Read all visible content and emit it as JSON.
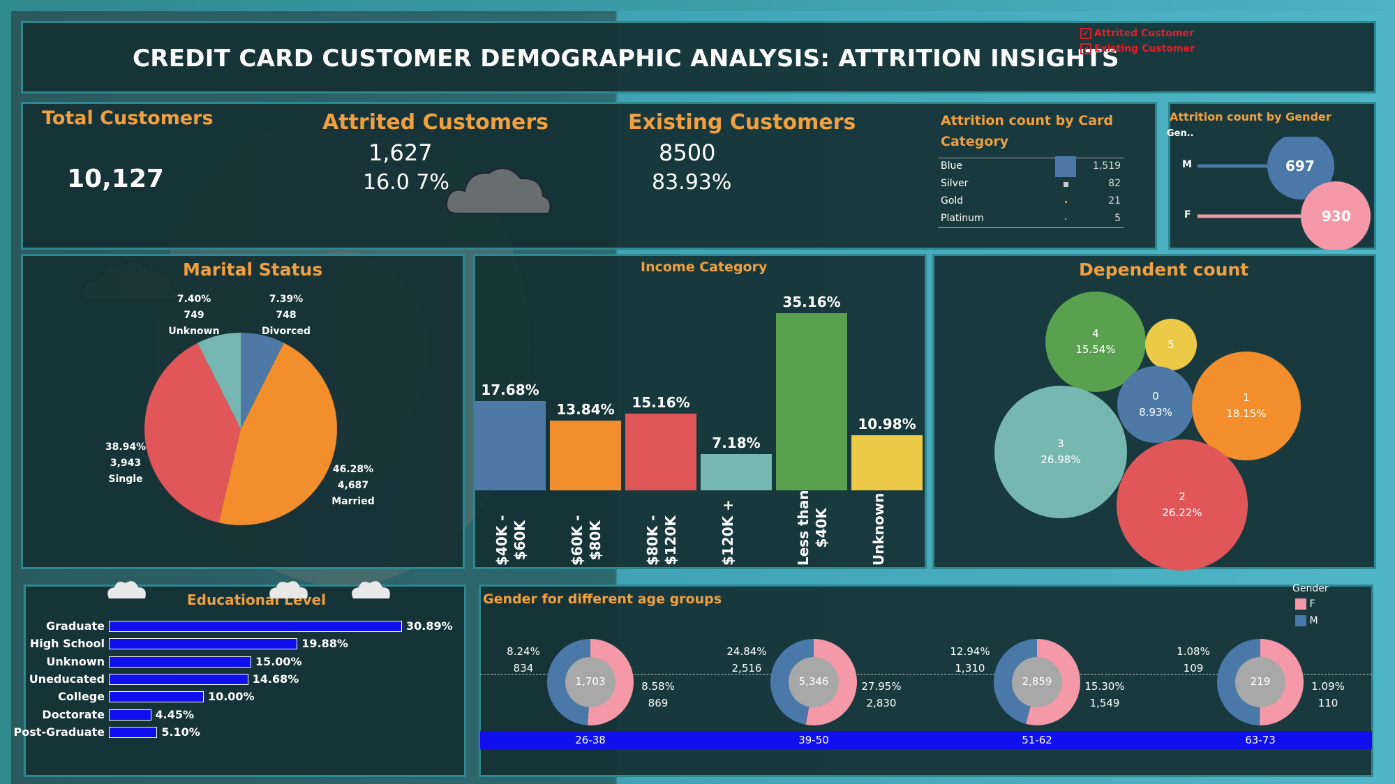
{
  "header": {
    "title": "CREDIT CARD CUSTOMER DEMOGRAPHIC ANALYSIS: ATTRITION INSIGHTS",
    "legend": [
      {
        "label": "Attrited Customer",
        "checked": true
      },
      {
        "label": "Existing Customer",
        "checked": true
      }
    ]
  },
  "kpis": {
    "total": {
      "label": "Total Customers",
      "value": "10,127"
    },
    "attrited": {
      "label": "Attrited Customers",
      "count": "1,627",
      "pct": "16.0 7%"
    },
    "existing": {
      "label": "Existing Customers",
      "count": "8500",
      "pct": "83.93%"
    }
  },
  "card_category": {
    "title_line1": "Attrition count by Card",
    "title_line2": "Category",
    "rows": [
      {
        "label": "Blue",
        "value": "1,519"
      },
      {
        "label": "Silver",
        "value": "82"
      },
      {
        "label": "Gold",
        "value": "21"
      },
      {
        "label": "Platinum",
        "value": "5"
      }
    ]
  },
  "gender_attrition": {
    "title": "Attrition count by Gender",
    "axis_label": "Gen..",
    "rows": [
      {
        "label": "M",
        "value": "697",
        "color": "#4a78a8"
      },
      {
        "label": "F",
        "value": "930",
        "color": "#f598a8"
      }
    ]
  },
  "marital": {
    "title": "Marital Status",
    "slices": [
      {
        "label": "Divorced",
        "count": "748",
        "pct": "7.39%",
        "value": 7.39,
        "color": "#4e79a7"
      },
      {
        "label": "Married",
        "count": "4,687",
        "pct": "46.28%",
        "value": 46.28,
        "color": "#f28e2b"
      },
      {
        "label": "Single",
        "count": "3,943",
        "pct": "38.94%",
        "value": 38.94,
        "color": "#e15759"
      },
      {
        "label": "Unknown",
        "count": "749",
        "pct": "7.40%",
        "value": 7.4,
        "color": "#76b7b2"
      }
    ]
  },
  "income": {
    "title": "Income Category",
    "bars": [
      {
        "label": "$40K - $60K",
        "line1": "$40K -",
        "line2": "$60K",
        "pct": "17.68%",
        "value": 17.68,
        "color": "#4e79a7"
      },
      {
        "label": "$60K - $80K",
        "line1": "$60K -",
        "line2": "$80K",
        "pct": "13.84%",
        "value": 13.84,
        "color": "#f28e2b"
      },
      {
        "label": "$80K - $120K",
        "line1": "$80K -",
        "line2": "$120K",
        "pct": "15.16%",
        "value": 15.16,
        "color": "#e15759"
      },
      {
        "label": "$120K +",
        "line1": "$120K +",
        "line2": "",
        "pct": "7.18%",
        "value": 7.18,
        "color": "#76b7b2"
      },
      {
        "label": "Less than $40K",
        "line1": "Less than",
        "line2": "$40K",
        "pct": "35.16%",
        "value": 35.16,
        "color": "#59a14f"
      },
      {
        "label": "Unknown",
        "line1": "Unknown",
        "line2": "",
        "pct": "10.98%",
        "value": 10.98,
        "color": "#edc948"
      }
    ]
  },
  "dependent": {
    "title": "Dependent count",
    "bubbles": [
      {
        "label": "4",
        "pct": "15.54%",
        "color": "#59a14f"
      },
      {
        "label": "5",
        "pct": "",
        "color": "#edc948"
      },
      {
        "label": "0",
        "pct": "8.93%",
        "color": "#4e79a7"
      },
      {
        "label": "1",
        "pct": "18.15%",
        "color": "#f28e2b"
      },
      {
        "label": "3",
        "pct": "26.98%",
        "color": "#76b7b2"
      },
      {
        "label": "2",
        "pct": "26.22%",
        "color": "#e15759"
      }
    ]
  },
  "education": {
    "title": "Educational Level",
    "rows": [
      {
        "label": "Graduate",
        "pct": "30.89%",
        "value": 30.89
      },
      {
        "label": "High School",
        "pct": "19.88%",
        "value": 19.88
      },
      {
        "label": "Unknown",
        "pct": "15.00%",
        "value": 15.0
      },
      {
        "label": "Uneducated",
        "pct": "14.68%",
        "value": 14.68
      },
      {
        "label": "College",
        "pct": "10.00%",
        "value": 10.0
      },
      {
        "label": "Doctorate",
        "pct": "4.45%",
        "value": 4.45
      },
      {
        "label": "Post-Graduate",
        "pct": "5.10%",
        "value": 5.1
      }
    ]
  },
  "age_gender": {
    "title": "Gender for different age groups",
    "legend_title": "Gender",
    "legend": [
      {
        "label": "F",
        "color": "#f598a8"
      },
      {
        "label": "M",
        "color": "#4a78a8"
      }
    ],
    "groups": [
      {
        "range": "26-38",
        "total": "1,703",
        "m_pct": "8.24%",
        "m_count": "834",
        "f_pct": "8.58%",
        "f_count": "869"
      },
      {
        "range": "39-50",
        "total": "5,346",
        "m_pct": "24.84%",
        "m_count": "2,516",
        "f_pct": "27.95%",
        "f_count": "2,830"
      },
      {
        "range": "51-62",
        "total": "2,859",
        "m_pct": "12.94%",
        "m_count": "1,310",
        "f_pct": "15.30%",
        "f_count": "1,549"
      },
      {
        "range": "63-73",
        "total": "219",
        "m_pct": "1.08%",
        "m_count": "109",
        "f_pct": "1.09%",
        "f_count": "110"
      }
    ]
  }
}
